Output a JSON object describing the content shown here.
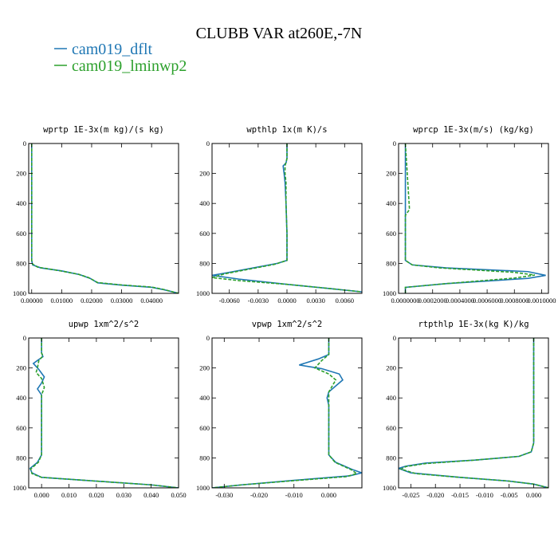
{
  "figure": {
    "title": "CLUBB VAR at260E,-7N",
    "legend": [
      {
        "label": "cam019_dflt",
        "color": "#1f77b4",
        "dash": "solid"
      },
      {
        "label": "cam019_lminwp2",
        "color": "#2ca02c",
        "dash": "dashed"
      }
    ]
  },
  "chart_data": [
    {
      "type": "line",
      "title": "wprtp  1E-3x(m kg)/(s kg)",
      "xlim": [
        -0.001,
        0.049
      ],
      "xticks": [
        0.0,
        0.01,
        0.02,
        0.03,
        0.04
      ],
      "xticklabels": [
        "0.00000",
        "0.01000",
        "0.02000",
        "0.03000",
        "0.04000"
      ],
      "ylim": [
        0,
        1000
      ],
      "yticks": [
        0,
        200,
        400,
        600,
        800,
        1000
      ],
      "series": [
        {
          "name": "cam019_dflt",
          "points": [
            [
              0,
              0
            ],
            [
              0,
              300
            ],
            [
              0,
              600
            ],
            [
              0,
              780
            ],
            [
              0.0003,
              810
            ],
            [
              0.003,
              830
            ],
            [
              0.01,
              850
            ],
            [
              0.016,
              875
            ],
            [
              0.0195,
              900
            ],
            [
              0.022,
              930
            ],
            [
              0.03,
              945
            ],
            [
              0.04,
              960
            ],
            [
              0.044,
              975
            ],
            [
              0.049,
              1000
            ]
          ]
        },
        {
          "name": "cam019_lminwp2",
          "points": [
            [
              0,
              0
            ],
            [
              0,
              300
            ],
            [
              0,
              600
            ],
            [
              0,
              780
            ],
            [
              0.0003,
              805
            ],
            [
              0.002,
              825
            ],
            [
              0.009,
              848
            ],
            [
              0.0155,
              872
            ],
            [
              0.019,
              895
            ],
            [
              0.022,
              928
            ],
            [
              0.03,
              944
            ],
            [
              0.04,
              958
            ],
            [
              0.044,
              974
            ],
            [
              0.049,
              1000
            ]
          ]
        }
      ]
    },
    {
      "type": "line",
      "title": "wpthlp  1x(m K)/s",
      "xlim": [
        -0.0078,
        0.0078
      ],
      "xticks": [
        -0.006,
        -0.003,
        0.0,
        0.003,
        0.006
      ],
      "xticklabels": [
        "-0.0060",
        "-0.0030",
        "0.0000",
        "0.0030",
        "0.0060"
      ],
      "ylim": [
        0,
        1000
      ],
      "yticks": [
        0,
        200,
        400,
        600,
        800,
        1000
      ],
      "series": [
        {
          "name": "cam019_dflt",
          "points": [
            [
              0,
              0
            ],
            [
              0,
              100
            ],
            [
              -0.0001,
              130
            ],
            [
              -0.0004,
              150
            ],
            [
              -0.0003,
              200
            ],
            [
              -0.0002,
              260
            ],
            [
              -0.0001,
              400
            ],
            [
              0,
              600
            ],
            [
              0,
              780
            ],
            [
              -0.001,
              800
            ],
            [
              -0.006,
              860
            ],
            [
              -0.0078,
              880
            ],
            [
              -0.005,
              905
            ],
            [
              0,
              940
            ],
            [
              0.004,
              965
            ],
            [
              0.0078,
              990
            ]
          ]
        },
        {
          "name": "cam019_lminwp2",
          "points": [
            [
              0,
              0
            ],
            [
              0,
              100
            ],
            [
              -0.0001,
              125
            ],
            [
              -0.0002,
              150
            ],
            [
              -0.0002,
              200
            ],
            [
              -0.0001,
              260
            ],
            [
              -0.0001,
              400
            ],
            [
              0,
              600
            ],
            [
              0,
              780
            ],
            [
              -0.0012,
              805
            ],
            [
              -0.0065,
              870
            ],
            [
              -0.0078,
              895
            ],
            [
              -0.005,
              915
            ],
            [
              0,
              940
            ],
            [
              0.004,
              965
            ],
            [
              0.0078,
              990
            ]
          ]
        }
      ]
    },
    {
      "type": "line",
      "title": "wprcp  1E-3x(m/s) (kg/kg)",
      "xlim": [
        -5e-05,
        0.00105
      ],
      "xticks": [
        0.0,
        0.0002,
        0.0004,
        0.0006,
        0.0008,
        0.001
      ],
      "xticklabels": [
        "0.0000000",
        "0.0002000",
        "0.0004000",
        "0.0006000",
        "0.0008000",
        "0.0010000"
      ],
      "ylim": [
        0,
        1000
      ],
      "yticks": [
        0,
        200,
        400,
        600,
        800,
        1000
      ],
      "series": [
        {
          "name": "cam019_dflt",
          "points": [
            [
              0,
              0
            ],
            [
              0,
              400
            ],
            [
              0,
              780
            ],
            [
              5e-05,
              810
            ],
            [
              0.0003,
              830
            ],
            [
              0.0009,
              855
            ],
            [
              0.00103,
              880
            ],
            [
              0.0009,
              900
            ],
            [
              0.0003,
              935
            ],
            [
              0,
              960
            ],
            [
              0,
              1000
            ]
          ]
        },
        {
          "name": "cam019_lminwp2",
          "points": [
            [
              0,
              0
            ],
            [
              3e-05,
              440
            ],
            [
              0,
              480
            ],
            [
              0,
              780
            ],
            [
              5e-05,
              810
            ],
            [
              0.00025,
              830
            ],
            [
              0.0008,
              860
            ],
            [
              0.00095,
              878
            ],
            [
              0.0008,
              898
            ],
            [
              0.0003,
              935
            ],
            [
              0,
              960
            ],
            [
              0,
              1000
            ]
          ]
        }
      ]
    },
    {
      "type": "line",
      "title": "upwp  1xm^2/s^2",
      "xlim": [
        -0.0047,
        0.05
      ],
      "xticks": [
        0.0,
        0.01,
        0.02,
        0.03,
        0.04,
        0.05
      ],
      "xticklabels": [
        "0.000",
        "0.010",
        "0.020",
        "0.030",
        "0.040",
        "0.050"
      ],
      "ylim": [
        0,
        1000
      ],
      "yticks": [
        0,
        200,
        400,
        600,
        800,
        1000
      ],
      "series": [
        {
          "name": "cam019_dflt",
          "points": [
            [
              0,
              0
            ],
            [
              0,
              100
            ],
            [
              0.0005,
              125
            ],
            [
              -0.0015,
              150
            ],
            [
              -0.003,
              170
            ],
            [
              -0.001,
              210
            ],
            [
              0.001,
              260
            ],
            [
              0,
              300
            ],
            [
              -0.0015,
              340
            ],
            [
              0,
              380
            ],
            [
              0,
              450
            ],
            [
              0,
              600
            ],
            [
              0,
              780
            ],
            [
              -0.0015,
              830
            ],
            [
              -0.0042,
              870
            ],
            [
              -0.0035,
              900
            ],
            [
              0,
              930
            ],
            [
              0.02,
              955
            ],
            [
              0.04,
              980
            ],
            [
              0.05,
              1000
            ]
          ]
        },
        {
          "name": "cam019_lminwp2",
          "points": [
            [
              0,
              0
            ],
            [
              0,
              100
            ],
            [
              0.0005,
              120
            ],
            [
              -0.001,
              150
            ],
            [
              -0.0015,
              200
            ],
            [
              -0.002,
              230
            ],
            [
              0,
              270
            ],
            [
              0.001,
              330
            ],
            [
              0,
              380
            ],
            [
              0,
              450
            ],
            [
              0,
              600
            ],
            [
              0,
              780
            ],
            [
              -0.0012,
              830
            ],
            [
              -0.004,
              875
            ],
            [
              -0.0035,
              905
            ],
            [
              0,
              930
            ],
            [
              0.02,
              955
            ],
            [
              0.04,
              980
            ],
            [
              0.05,
              1000
            ]
          ]
        }
      ]
    },
    {
      "type": "line",
      "title": "vpwp  1xm^2/s^2",
      "xlim": [
        -0.0335,
        0.0095
      ],
      "xticks": [
        -0.03,
        -0.02,
        -0.01,
        0.0
      ],
      "xticklabels": [
        "-0.030",
        "-0.020",
        "-0.010",
        "0.000"
      ],
      "ylim": [
        0,
        1000
      ],
      "yticks": [
        0,
        200,
        400,
        600,
        800,
        1000
      ],
      "series": [
        {
          "name": "cam019_dflt",
          "points": [
            [
              0,
              0
            ],
            [
              0,
              110
            ],
            [
              -0.003,
              140
            ],
            [
              -0.0085,
              180
            ],
            [
              -0.002,
              205
            ],
            [
              0.003,
              240
            ],
            [
              0.004,
              280
            ],
            [
              0.002,
              320
            ],
            [
              0,
              360
            ],
            [
              -0.0005,
              400
            ],
            [
              0,
              450
            ],
            [
              0,
              600
            ],
            [
              0,
              780
            ],
            [
              0.002,
              830
            ],
            [
              0.007,
              880
            ],
            [
              0.0095,
              900
            ],
            [
              0.006,
              920
            ],
            [
              -0.01,
              950
            ],
            [
              -0.025,
              980
            ],
            [
              -0.0335,
              1000
            ]
          ]
        },
        {
          "name": "cam019_lminwp2",
          "points": [
            [
              0,
              0
            ],
            [
              0,
              110
            ],
            [
              -0.002,
              150
            ],
            [
              -0.004,
              200
            ],
            [
              0,
              240
            ],
            [
              0.002,
              280
            ],
            [
              0.001,
              320
            ],
            [
              0,
              360
            ],
            [
              0,
              400
            ],
            [
              0,
              450
            ],
            [
              0,
              600
            ],
            [
              0,
              780
            ],
            [
              0.0018,
              830
            ],
            [
              0.0065,
              880
            ],
            [
              0.008,
              905
            ],
            [
              0.005,
              925
            ],
            [
              -0.01,
              952
            ],
            [
              -0.025,
              980
            ],
            [
              -0.0335,
              1000
            ]
          ]
        }
      ]
    },
    {
      "type": "line",
      "title": "rtpthlp  1E-3x(kg K)/kg",
      "xlim": [
        -0.0275,
        0.003
      ],
      "xticks": [
        -0.025,
        -0.02,
        -0.015,
        -0.01,
        -0.005,
        0.0
      ],
      "xticklabels": [
        "-0.025",
        "-0.020",
        "-0.015",
        "-0.010",
        "-0.005",
        "0.000"
      ],
      "ylim": [
        0,
        1000
      ],
      "yticks": [
        0,
        200,
        400,
        600,
        800,
        1000
      ],
      "series": [
        {
          "name": "cam019_dflt",
          "points": [
            [
              0,
              0
            ],
            [
              0,
              400
            ],
            [
              0,
              700
            ],
            [
              -0.0005,
              760
            ],
            [
              -0.003,
              790
            ],
            [
              -0.012,
              815
            ],
            [
              -0.022,
              835
            ],
            [
              -0.026,
              855
            ],
            [
              -0.0275,
              870
            ],
            [
              -0.025,
              900
            ],
            [
              -0.015,
              930
            ],
            [
              -0.005,
              955
            ],
            [
              0,
              975
            ],
            [
              0.003,
              1000
            ]
          ]
        },
        {
          "name": "cam019_lminwp2",
          "points": [
            [
              0,
              0
            ],
            [
              0,
              400
            ],
            [
              0,
              700
            ],
            [
              -0.0005,
              760
            ],
            [
              -0.003,
              790
            ],
            [
              -0.012,
              815
            ],
            [
              -0.022,
              838
            ],
            [
              -0.026,
              858
            ],
            [
              -0.027,
              875
            ],
            [
              -0.024,
              905
            ],
            [
              -0.015,
              930
            ],
            [
              -0.005,
              955
            ],
            [
              0,
              975
            ],
            [
              0.003,
              1000
            ]
          ]
        }
      ]
    }
  ]
}
